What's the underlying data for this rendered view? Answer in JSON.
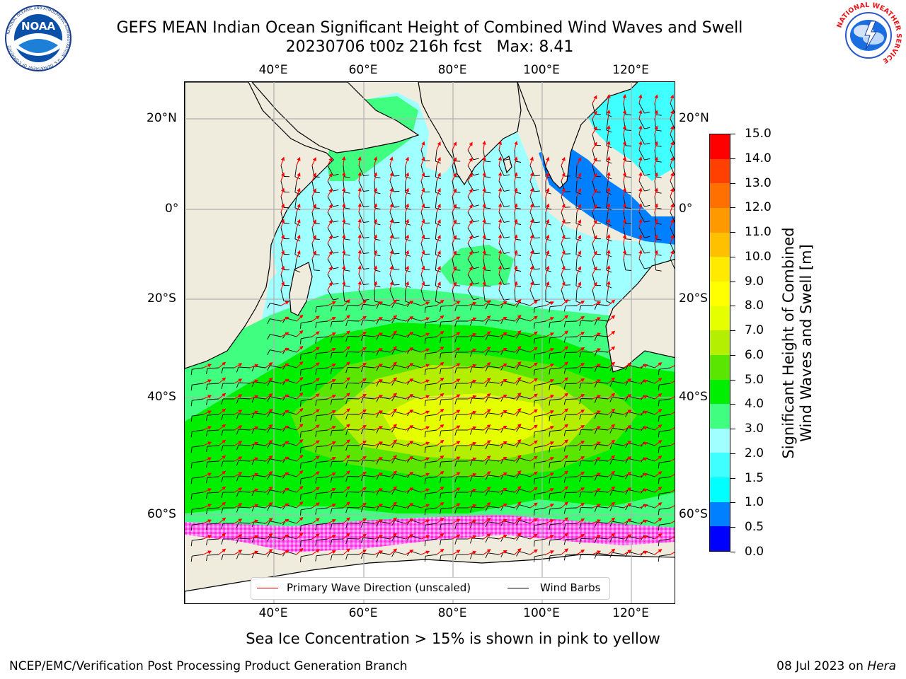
{
  "title": {
    "line1": "GEFS MEAN Indian Ocean Significant Height of Combined Wind Waves and Swell",
    "line2": "20230706 t00z 216h fcst   Max: 8.41"
  },
  "logos": {
    "left": {
      "name": "noaa-logo",
      "text": "NOAA",
      "ring_text": "NATIONAL OCEANIC AND ATMOSPHERIC ADMINISTRATION · U.S. DEPARTMENT OF COMMERCE"
    },
    "right": {
      "name": "nws-logo",
      "ring_text": "NATIONAL WEATHER SERVICE"
    }
  },
  "map": {
    "lon_labels": [
      "40°E",
      "60°E",
      "80°E",
      "100°E",
      "120°E"
    ],
    "lat_labels": [
      "20°N",
      "0°",
      "20°S",
      "40°S",
      "60°S"
    ],
    "lon_range": [
      20,
      130
    ],
    "lat_range": [
      -73,
      27
    ],
    "grid": true,
    "land_color": "#efecdd",
    "ocean_no_data_color": "#ffffff"
  },
  "legend": {
    "wave_direction_label": "Primary Wave Direction (unscaled)",
    "wave_direction_color": "#ff0000",
    "wind_barbs_label": "Wind Barbs",
    "wind_barbs_color": "#000000"
  },
  "colorbar": {
    "title_line1": "Significant Height of Combined",
    "title_line2": "Wind Waves and Swell [m]",
    "tick_labels": [
      "0.0",
      "0.5",
      "1.0",
      "1.5",
      "2.0",
      "3.0",
      "4.0",
      "5.0",
      "6.0",
      "7.0",
      "8.0",
      "9.0",
      "10.0",
      "11.0",
      "12.0",
      "13.0",
      "14.0",
      "15.0"
    ],
    "colors": [
      "#0000ff",
      "#0080ff",
      "#00ffff",
      "#40ffff",
      "#a0ffff",
      "#40ff80",
      "#00ee00",
      "#5be600",
      "#b4ee00",
      "#e6ff00",
      "#ffff00",
      "#ffea00",
      "#ffc000",
      "#ff9900",
      "#ff7000",
      "#ff4000",
      "#ff0000"
    ]
  },
  "subtitle": "Sea Ice Concentration > 15% is shown in pink to yellow",
  "footer": {
    "left": "NCEP/EMC/Verification Post Processing Product Generation Branch",
    "right_prefix": "08 Jul 2023 on ",
    "right_host": "Hera"
  }
}
